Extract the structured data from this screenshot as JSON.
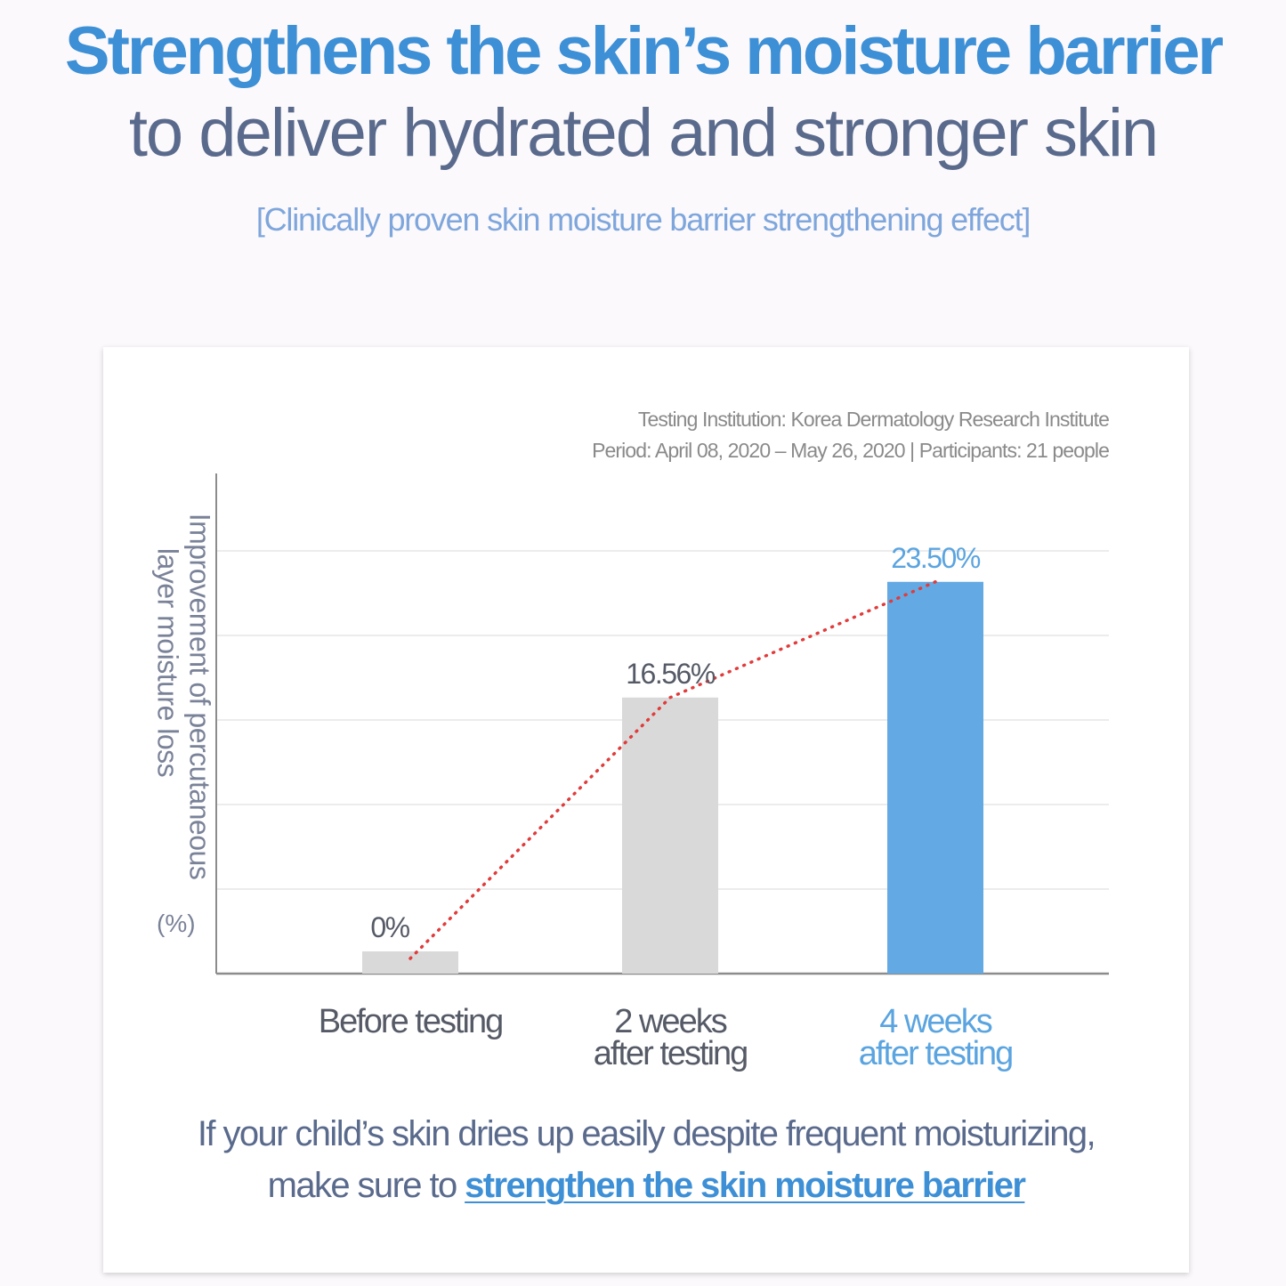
{
  "header": {
    "title": "Strengthens the skin’s moisture barrier",
    "subtitle": "to deliver hydrated and stronger skin",
    "caption": "[Clinically proven skin moisture barrier strengthening effect]"
  },
  "study": {
    "institution": "Testing Institution: Korea Dermatology Research Institute",
    "period": "Period: April 08, 2020 – May 26, 2020 | Participants: 21 people"
  },
  "chart_data": {
    "type": "bar",
    "categories": [
      "Before testing",
      "2 weeks after testing",
      "4 weeks after testing"
    ],
    "category_lines": [
      [
        "Before testing"
      ],
      [
        "2 weeks",
        "after testing"
      ],
      [
        "4 weeks",
        "after testing"
      ]
    ],
    "values": [
      0,
      16.56,
      23.5
    ],
    "value_labels": [
      "0%",
      "16.56%",
      "23.50%"
    ],
    "ylabel_lines": [
      "Improvement of percutaneous",
      "layer moisture loss"
    ],
    "yunit": "(%)",
    "ylim": [
      0,
      30
    ],
    "grid": true,
    "trend_line": "dotted",
    "colors": {
      "bar": "#d9d9d9",
      "bar_highlight": "#63a9e3",
      "label_highlight": "#5aa4e0",
      "trend": "#e23b3b",
      "axis": "#8c8c8c",
      "grid": "#e6e6e6"
    }
  },
  "footer": {
    "line1": "If your child’s skin dries up easily despite frequent moisturizing,",
    "line2_prefix": "make sure to ",
    "line2_emphasis": "strengthen the skin moisture barrier"
  }
}
